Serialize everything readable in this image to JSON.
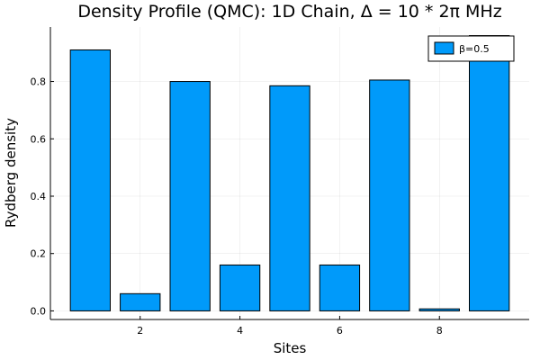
{
  "chart_data": {
    "type": "bar",
    "title": "Density Profile (QMC): 1D Chain, Δ = 10 * 2π MHz",
    "xlabel": "Sites",
    "ylabel": "Rydberg density",
    "x": [
      1,
      2,
      3,
      4,
      5,
      6,
      7,
      8,
      9
    ],
    "series": [
      {
        "name": "β=0.5",
        "color": "#009AFA",
        "values": [
          0.91,
          0.06,
          0.8,
          0.16,
          0.785,
          0.16,
          0.805,
          0.007,
          0.96
        ]
      }
    ],
    "xlim": [
      0.2,
      9.8
    ],
    "ylim": [
      -0.03,
      0.99
    ],
    "xticks": [
      2,
      4,
      6,
      8
    ],
    "xtick_labels": [
      "2",
      "4",
      "6",
      "8"
    ],
    "yticks": [
      0,
      0.2,
      0.4,
      0.6,
      0.8
    ],
    "ytick_labels": [
      "0.0",
      "0.2",
      "0.4",
      "0.6",
      "0.8"
    ],
    "grid": true,
    "legend_position": "top-right"
  }
}
